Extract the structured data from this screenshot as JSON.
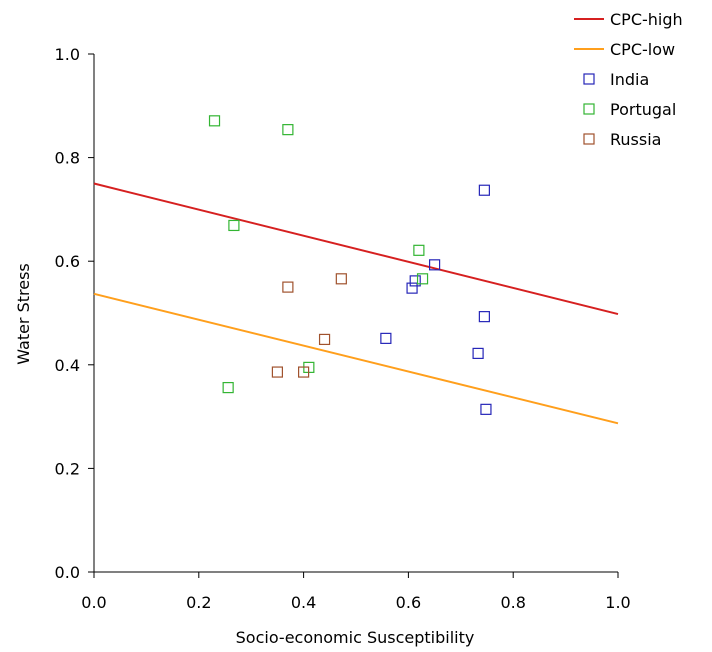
{
  "chart_data": {
    "type": "scatter",
    "xlabel": "Socio-economic Susceptibility",
    "ylabel": "Water Stress",
    "xlim": [
      0,
      1
    ],
    "ylim": [
      0,
      1
    ],
    "xticks": [
      0,
      0.2,
      0.4,
      0.6,
      0.8,
      1
    ],
    "yticks": [
      0,
      0.2,
      0.4,
      0.6,
      0.8,
      1
    ],
    "xtick_labels": [
      "0.0",
      "0.2",
      "0.4",
      "0.6",
      "0.8",
      "1.0"
    ],
    "ytick_labels": [
      "0.0",
      "0.2",
      "0.4",
      "0.6",
      "0.8",
      "1.0"
    ],
    "grid": false,
    "legend_position": "top-right",
    "lines": [
      {
        "name": "CPC-high",
        "color": "#d62020",
        "points": [
          [
            0,
            0.75
          ],
          [
            1,
            0.498
          ]
        ]
      },
      {
        "name": "CPC-low",
        "color": "#ff9f1c",
        "points": [
          [
            0,
            0.537
          ],
          [
            1,
            0.287
          ]
        ]
      }
    ],
    "series": [
      {
        "name": "India",
        "color": "#2626b8",
        "marker": "square-open",
        "points": [
          [
            0.745,
            0.737
          ],
          [
            0.65,
            0.593
          ],
          [
            0.613,
            0.562
          ],
          [
            0.607,
            0.548
          ],
          [
            0.745,
            0.493
          ],
          [
            0.557,
            0.451
          ],
          [
            0.733,
            0.422
          ],
          [
            0.748,
            0.314
          ]
        ]
      },
      {
        "name": "Portugal",
        "color": "#33b533",
        "marker": "square-open",
        "points": [
          [
            0.23,
            0.871
          ],
          [
            0.37,
            0.854
          ],
          [
            0.267,
            0.669
          ],
          [
            0.62,
            0.621
          ],
          [
            0.627,
            0.566
          ],
          [
            0.41,
            0.395
          ],
          [
            0.256,
            0.356
          ]
        ]
      },
      {
        "name": "Russia",
        "color": "#a0522d",
        "marker": "square-open",
        "points": [
          [
            0.472,
            0.566
          ],
          [
            0.37,
            0.55
          ],
          [
            0.44,
            0.449
          ],
          [
            0.35,
            0.386
          ],
          [
            0.4,
            0.386
          ]
        ]
      }
    ]
  }
}
